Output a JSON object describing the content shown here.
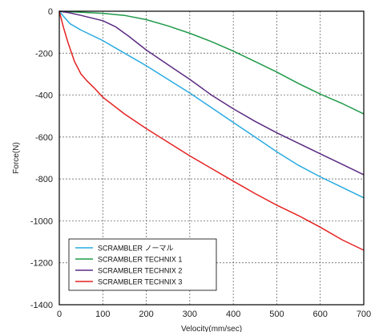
{
  "chart_data": {
    "type": "line",
    "xlabel": "Velocity(mm/sec)",
    "ylabel": "Force(N)",
    "xlim": [
      0,
      700
    ],
    "ylim": [
      -1400,
      0
    ],
    "xticks": [
      0,
      100,
      200,
      300,
      400,
      500,
      600,
      700
    ],
    "yticks": [
      0,
      -200,
      -400,
      -600,
      -800,
      -1000,
      -1200,
      -1400
    ],
    "grid": true,
    "legend_position": "bottom-left",
    "series": [
      {
        "name": "SCRAMBLER ノーマル",
        "color": "#29abe2",
        "points": [
          [
            0,
            0
          ],
          [
            10,
            -25
          ],
          [
            25,
            -60
          ],
          [
            50,
            -90
          ],
          [
            100,
            -140
          ],
          [
            150,
            -200
          ],
          [
            200,
            -260
          ],
          [
            250,
            -325
          ],
          [
            300,
            -390
          ],
          [
            350,
            -460
          ],
          [
            400,
            -530
          ],
          [
            450,
            -600
          ],
          [
            500,
            -670
          ],
          [
            550,
            -735
          ],
          [
            600,
            -790
          ],
          [
            650,
            -840
          ],
          [
            700,
            -890
          ]
        ]
      },
      {
        "name": "SCRAMBLER TECHNIX 1",
        "color": "#1f9a48",
        "points": [
          [
            0,
            0
          ],
          [
            50,
            -5
          ],
          [
            100,
            -10
          ],
          [
            150,
            -20
          ],
          [
            200,
            -40
          ],
          [
            250,
            -70
          ],
          [
            300,
            -105
          ],
          [
            350,
            -145
          ],
          [
            400,
            -190
          ],
          [
            450,
            -240
          ],
          [
            500,
            -290
          ],
          [
            550,
            -345
          ],
          [
            600,
            -395
          ],
          [
            650,
            -440
          ],
          [
            700,
            -490
          ]
        ]
      },
      {
        "name": "SCRAMBLER TECHNIX 2",
        "color": "#5b2c83",
        "points": [
          [
            0,
            0
          ],
          [
            25,
            -8
          ],
          [
            50,
            -20
          ],
          [
            100,
            -45
          ],
          [
            130,
            -75
          ],
          [
            160,
            -120
          ],
          [
            200,
            -185
          ],
          [
            250,
            -255
          ],
          [
            300,
            -325
          ],
          [
            350,
            -400
          ],
          [
            400,
            -465
          ],
          [
            450,
            -525
          ],
          [
            500,
            -580
          ],
          [
            550,
            -630
          ],
          [
            600,
            -680
          ],
          [
            650,
            -730
          ],
          [
            700,
            -780
          ]
        ]
      },
      {
        "name": "SCRAMBLER TECHNIX 3",
        "color": "#e52222",
        "points": [
          [
            0,
            0
          ],
          [
            10,
            -80
          ],
          [
            20,
            -150
          ],
          [
            35,
            -240
          ],
          [
            50,
            -300
          ],
          [
            65,
            -335
          ],
          [
            80,
            -365
          ],
          [
            100,
            -410
          ],
          [
            150,
            -490
          ],
          [
            200,
            -560
          ],
          [
            250,
            -625
          ],
          [
            300,
            -690
          ],
          [
            350,
            -750
          ],
          [
            400,
            -810
          ],
          [
            450,
            -870
          ],
          [
            500,
            -925
          ],
          [
            550,
            -975
          ],
          [
            600,
            -1030
          ],
          [
            650,
            -1090
          ],
          [
            700,
            -1140
          ]
        ]
      }
    ]
  }
}
